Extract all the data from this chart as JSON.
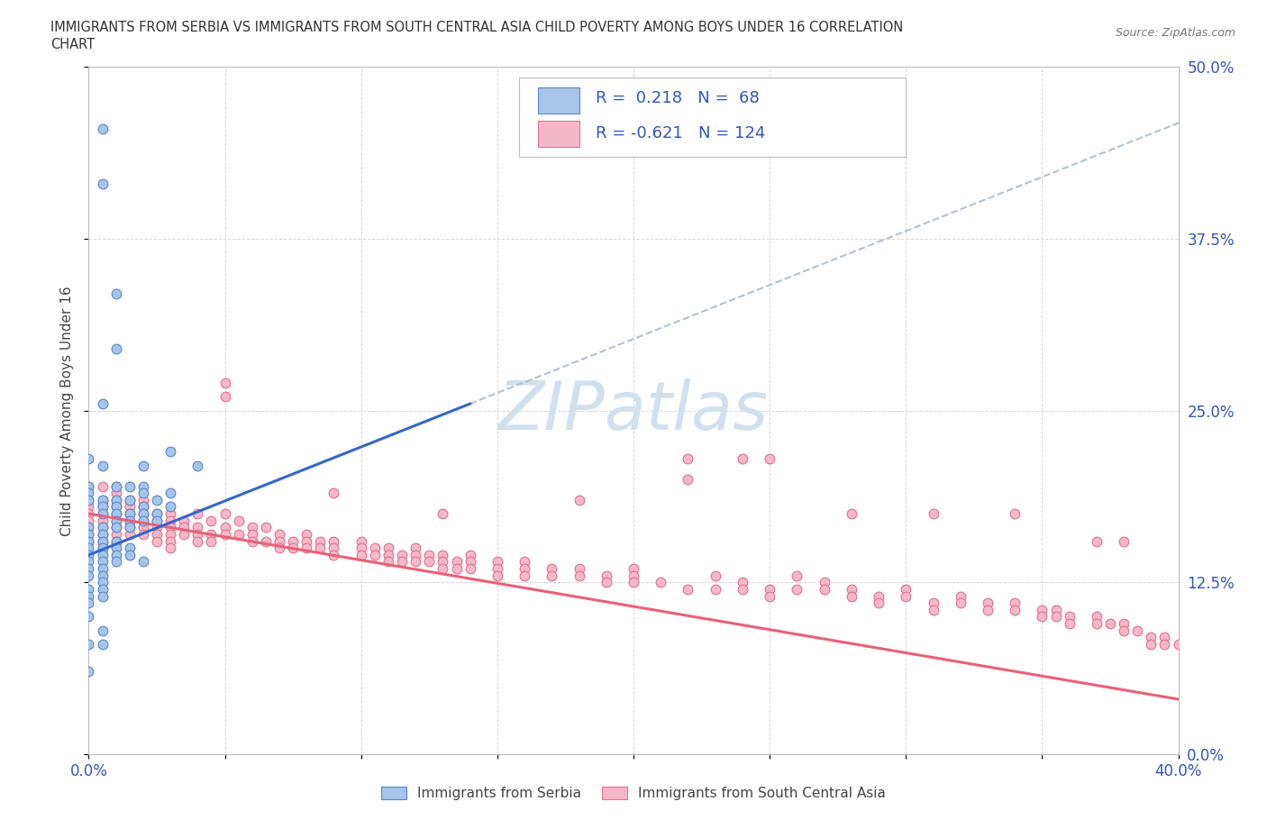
{
  "title_line1": "IMMIGRANTS FROM SERBIA VS IMMIGRANTS FROM SOUTH CENTRAL ASIA CHILD POVERTY AMONG BOYS UNDER 16 CORRELATION",
  "title_line2": "CHART",
  "source_text": "Source: ZipAtlas.com",
  "ylabel": "Child Poverty Among Boys Under 16",
  "xlim": [
    0.0,
    0.4
  ],
  "ylim": [
    0.0,
    0.5
  ],
  "x_ticks": [
    0.0,
    0.05,
    0.1,
    0.15,
    0.2,
    0.25,
    0.3,
    0.35,
    0.4
  ],
  "x_tick_labels": [
    "0.0%",
    "",
    "",
    "",
    "",
    "",
    "",
    "",
    "40.0%"
  ],
  "y_ticks": [
    0.0,
    0.125,
    0.25,
    0.375,
    0.5
  ],
  "y_tick_labels": [
    "0.0%",
    "12.5%",
    "25.0%",
    "37.5%",
    "50.0%"
  ],
  "serbia_color": "#A8C4E8",
  "serbia_edge_color": "#5588CC",
  "sca_color": "#F5B8C8",
  "sca_edge_color": "#E07090",
  "trend_blue": "#3366CC",
  "trend_pink": "#E8607A",
  "trend_dash": "#AABBCC",
  "serbia_R": 0.218,
  "serbia_N": 68,
  "sca_R": -0.621,
  "sca_N": 124,
  "watermark_color": "#D0E0EE",
  "legend_border": "#BBBBCC",
  "legend_text_color": "#3355BB"
}
